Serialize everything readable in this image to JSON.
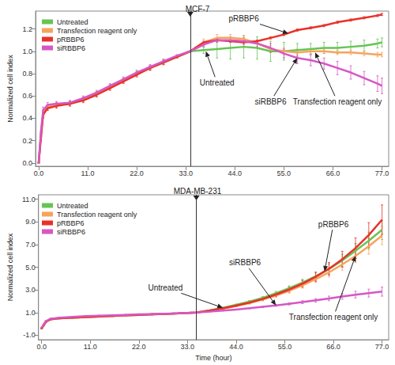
{
  "chart_data": [
    {
      "type": "line",
      "title": "MCF-7",
      "ylabel": "Normalized cell index",
      "legend": "top-left",
      "grid": false,
      "xlim": [
        -0.7,
        78.5
      ],
      "xticks": [
        {
          "value": 0,
          "label": "0.0"
        },
        {
          "value": 11,
          "label": "11.0"
        },
        {
          "value": 22,
          "label": "22.0"
        },
        {
          "value": 33,
          "label": "33.0"
        },
        {
          "value": 44,
          "label": "44.0"
        },
        {
          "value": 55,
          "label": "55.0"
        },
        {
          "value": 66,
          "label": "66.0"
        },
        {
          "value": 77,
          "label": "77.0"
        }
      ],
      "ylim": [
        -0.03,
        1.36
      ],
      "yticks": [
        {
          "value": 0,
          "label": "0.0"
        },
        0.2,
        0.4,
        0.6,
        0.8,
        {
          "value": 1,
          "label": "1.0"
        },
        1.2
      ],
      "vline_x": 34,
      "x": [
        0,
        0.5,
        1,
        2,
        4,
        7,
        10,
        13,
        16,
        19,
        22,
        25,
        28,
        31,
        34,
        37,
        40,
        43,
        46,
        49,
        52,
        55,
        58,
        61,
        64,
        67,
        70,
        73,
        76,
        77
      ],
      "series": [
        {
          "name": "Untreated",
          "color": "#66c455",
          "values": [
            0.0,
            0.25,
            0.45,
            0.5,
            0.52,
            0.53,
            0.57,
            0.62,
            0.68,
            0.74,
            0.8,
            0.85,
            0.9,
            0.95,
            1.0,
            1.01,
            1.02,
            1.03,
            1.04,
            1.03,
            1.0,
            1.0,
            1.01,
            1.02,
            1.03,
            1.03,
            1.04,
            1.05,
            1.07,
            1.08
          ],
          "errors": [
            0,
            0.02,
            0.03,
            0.02,
            0.02,
            0.02,
            0.02,
            0.02,
            0.02,
            0.02,
            0.02,
            0.02,
            0.02,
            0.01,
            0,
            0.03,
            0.08,
            0.1,
            0.1,
            0.1,
            0.09,
            0.08,
            0.06,
            0.05,
            0.05,
            0.05,
            0.05,
            0.05,
            0.04,
            0.04
          ]
        },
        {
          "name": "Transfection reagent only",
          "color": "#f7a35c",
          "values": [
            0.0,
            0.25,
            0.45,
            0.5,
            0.52,
            0.53,
            0.57,
            0.62,
            0.68,
            0.74,
            0.8,
            0.85,
            0.9,
            0.95,
            1.0,
            1.08,
            1.12,
            1.12,
            1.11,
            1.07,
            1.02,
            1.0,
            0.99,
            1.0,
            1.0,
            0.99,
            0.99,
            0.98,
            0.97,
            0.97
          ],
          "errors": [
            0,
            0.02,
            0.03,
            0.02,
            0.02,
            0.02,
            0.02,
            0.02,
            0.02,
            0.02,
            0.02,
            0.02,
            0.02,
            0.01,
            0,
            0.03,
            0.03,
            0.03,
            0.03,
            0.03,
            0.03,
            0.03,
            0.03,
            0.02,
            0.02,
            0.02,
            0.02,
            0.02,
            0.02,
            0.02
          ]
        },
        {
          "name": "pRBBP6",
          "color": "#e8312a",
          "values": [
            0.0,
            0.22,
            0.43,
            0.49,
            0.51,
            0.53,
            0.56,
            0.61,
            0.67,
            0.73,
            0.79,
            0.85,
            0.9,
            0.95,
            1.0,
            1.08,
            1.1,
            1.09,
            1.08,
            1.09,
            1.12,
            1.15,
            1.19,
            1.21,
            1.23,
            1.26,
            1.28,
            1.3,
            1.32,
            1.33
          ],
          "errors": [
            0,
            0.02,
            0.03,
            0.02,
            0.02,
            0.02,
            0.02,
            0.02,
            0.02,
            0.02,
            0.02,
            0.02,
            0.02,
            0.01,
            0,
            0.01,
            0.01,
            0.01,
            0.01,
            0.01,
            0.01,
            0.01,
            0.01,
            0.01,
            0.01,
            0.01,
            0.01,
            0.01,
            0.01,
            0.01
          ]
        },
        {
          "name": "siRBBP6",
          "color": "#d657c4",
          "values": [
            0.0,
            0.27,
            0.47,
            0.52,
            0.53,
            0.54,
            0.58,
            0.63,
            0.69,
            0.75,
            0.81,
            0.86,
            0.91,
            0.96,
            1.0,
            1.06,
            1.1,
            1.1,
            1.09,
            1.07,
            1.03,
            0.98,
            0.94,
            0.92,
            0.89,
            0.85,
            0.81,
            0.76,
            0.71,
            0.69
          ],
          "errors": [
            0,
            0.02,
            0.03,
            0.02,
            0.02,
            0.02,
            0.02,
            0.02,
            0.02,
            0.02,
            0.02,
            0.02,
            0.02,
            0.01,
            0,
            0.02,
            0.02,
            0.02,
            0.03,
            0.03,
            0.04,
            0.04,
            0.05,
            0.05,
            0.05,
            0.06,
            0.06,
            0.06,
            0.07,
            0.07
          ]
        }
      ],
      "annotations": [
        {
          "text": "pRBBP6",
          "x": 46,
          "y": 1.29,
          "arrow_x": 56,
          "arrow_y": 1.16
        },
        {
          "text": "Untreated",
          "x": 40,
          "y": 0.72,
          "arrow_x": 37.5,
          "arrow_y": 1.0
        },
        {
          "text": "siRBBP6",
          "x": 52,
          "y": 0.55,
          "arrow_x": 58,
          "arrow_y": 0.94
        },
        {
          "text": "Transfection reagent only",
          "x": 67,
          "y": 0.55,
          "arrow_x": 62,
          "arrow_y": 0.99
        }
      ]
    },
    {
      "type": "line",
      "title": "MDA-MB-231",
      "ylabel": "Normalized cell index",
      "xlabel": "Time (hour)",
      "legend": "top-left",
      "grid": false,
      "xlim": [
        -0.7,
        78.5
      ],
      "xticks": [
        {
          "value": 0,
          "label": "0.0"
        },
        {
          "value": 11,
          "label": "11.0"
        },
        {
          "value": 22,
          "label": "22.0"
        },
        {
          "value": 33,
          "label": "33.0"
        },
        {
          "value": 44,
          "label": "44.0"
        },
        {
          "value": 55,
          "label": "55.0"
        },
        {
          "value": 66,
          "label": "66.0"
        },
        {
          "value": 77,
          "label": "77.0"
        }
      ],
      "ylim": [
        -1.4,
        11.4
      ],
      "yticks": [
        {
          "value": -1,
          "label": "-1.0"
        },
        {
          "value": 1,
          "label": "1.0"
        },
        {
          "value": 3,
          "label": "3.0"
        },
        {
          "value": 5,
          "label": "5.0"
        },
        {
          "value": 7,
          "label": "7.0"
        },
        {
          "value": 9,
          "label": "9.0"
        },
        {
          "value": 11,
          "label": "11.0"
        }
      ],
      "vline_x": 35,
      "x": [
        0,
        0.5,
        1,
        2,
        4,
        7,
        10,
        13,
        16,
        19,
        22,
        25,
        28,
        31,
        35,
        38,
        41,
        44,
        47,
        50,
        53,
        56,
        59,
        62,
        65,
        68,
        71,
        74,
        77
      ],
      "series": [
        {
          "name": "Untreated",
          "color": "#66c455",
          "values": [
            -0.4,
            -0.1,
            0.2,
            0.4,
            0.5,
            0.55,
            0.6,
            0.65,
            0.7,
            0.75,
            0.8,
            0.84,
            0.88,
            0.93,
            1.0,
            1.2,
            1.42,
            1.68,
            1.97,
            2.3,
            2.7,
            3.15,
            3.65,
            4.2,
            4.85,
            5.6,
            6.45,
            7.35,
            8.3
          ],
          "errors": [
            0.05,
            0.05,
            0.05,
            0.05,
            0.05,
            0.05,
            0.05,
            0.05,
            0.05,
            0.05,
            0.05,
            0.05,
            0.04,
            0.03,
            0,
            0.03,
            0.05,
            0.07,
            0.1,
            0.13,
            0.17,
            0.22,
            0.28,
            0.35,
            0.45,
            0.55,
            0.65,
            0.75,
            0.85
          ]
        },
        {
          "name": "Transfection reagent only",
          "color": "#f7a35c",
          "values": [
            -0.4,
            -0.1,
            0.2,
            0.4,
            0.5,
            0.55,
            0.6,
            0.65,
            0.7,
            0.75,
            0.8,
            0.84,
            0.88,
            0.93,
            1.0,
            1.15,
            1.35,
            1.58,
            1.84,
            2.15,
            2.5,
            2.92,
            3.4,
            3.95,
            4.55,
            5.25,
            6.0,
            6.85,
            7.8
          ],
          "errors": [
            0.05,
            0.05,
            0.05,
            0.05,
            0.05,
            0.05,
            0.05,
            0.05,
            0.05,
            0.05,
            0.05,
            0.05,
            0.04,
            0.03,
            0,
            0.03,
            0.05,
            0.07,
            0.09,
            0.12,
            0.15,
            0.2,
            0.25,
            0.3,
            0.4,
            0.5,
            0.6,
            0.7,
            0.8
          ]
        },
        {
          "name": "pRBBP6",
          "color": "#e8312a",
          "values": [
            -0.4,
            -0.1,
            0.2,
            0.4,
            0.5,
            0.55,
            0.6,
            0.65,
            0.7,
            0.75,
            0.8,
            0.84,
            0.88,
            0.93,
            1.0,
            1.17,
            1.37,
            1.61,
            1.88,
            2.2,
            2.59,
            3.03,
            3.55,
            4.16,
            4.87,
            5.71,
            6.69,
            7.84,
            9.2
          ],
          "errors": [
            0.05,
            0.05,
            0.05,
            0.05,
            0.05,
            0.05,
            0.05,
            0.05,
            0.05,
            0.05,
            0.05,
            0.05,
            0.04,
            0.03,
            0,
            0.03,
            0.05,
            0.07,
            0.1,
            0.13,
            0.17,
            0.22,
            0.3,
            0.4,
            0.55,
            0.7,
            0.9,
            1.1,
            1.3
          ]
        },
        {
          "name": "siRBBP6",
          "color": "#d657c4",
          "values": [
            -0.35,
            -0.05,
            0.25,
            0.45,
            0.55,
            0.62,
            0.68,
            0.72,
            0.76,
            0.8,
            0.84,
            0.87,
            0.9,
            0.94,
            1.0,
            1.08,
            1.17,
            1.27,
            1.38,
            1.5,
            1.63,
            1.77,
            1.92,
            2.08,
            2.25,
            2.42,
            2.58,
            2.72,
            2.85
          ],
          "errors": [
            0.05,
            0.05,
            0.05,
            0.05,
            0.05,
            0.05,
            0.05,
            0.05,
            0.05,
            0.05,
            0.05,
            0.05,
            0.04,
            0.03,
            0,
            0.02,
            0.03,
            0.04,
            0.05,
            0.06,
            0.08,
            0.1,
            0.13,
            0.16,
            0.2,
            0.25,
            0.3,
            0.35,
            0.4
          ]
        }
      ],
      "annotations": [
        {
          "text": "pRBBP6",
          "x": 66,
          "y": 8.8,
          "arrow_x": 64,
          "arrow_y": 4.63
        },
        {
          "text": "Untreated",
          "x": 28,
          "y": 3.2,
          "arrow_x": 41,
          "arrow_y": 1.42
        },
        {
          "text": "siRBBP6",
          "x": 46,
          "y": 5.4,
          "arrow_x": 53,
          "arrow_y": 1.63
        },
        {
          "text": "Transfection reagent only",
          "x": 66,
          "y": 0.6,
          "arrow_x": 71,
          "arrow_y": 6.0
        }
      ]
    }
  ]
}
